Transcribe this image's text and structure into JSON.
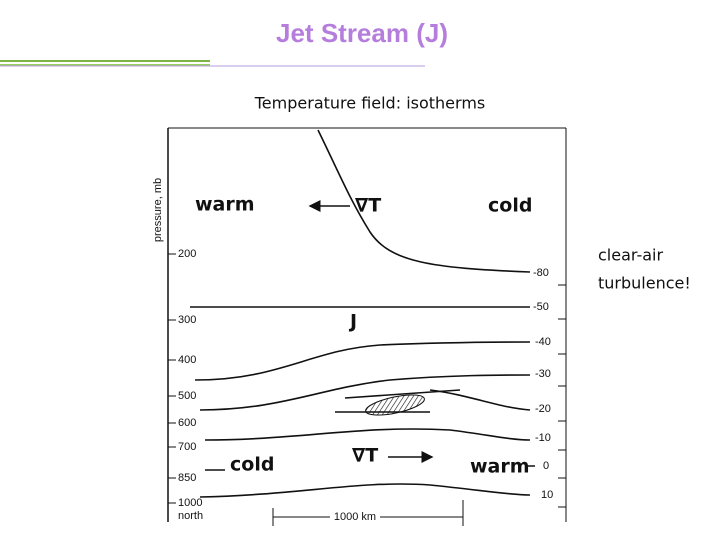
{
  "header": {
    "title": "Jet Stream (J)"
  },
  "subtitle": "Temperature field: isotherms",
  "diagram": {
    "y_axis_label": "pressure, mb",
    "pressure_labels": [
      "200",
      "300",
      "400",
      "500",
      "600",
      "700",
      "850",
      "1000"
    ],
    "bottom_left_label": "north",
    "isotherm_labels": [
      "-80",
      "-50",
      "-40",
      "-30",
      "-20",
      "-10",
      "0",
      "10"
    ],
    "labels": {
      "warm_top": "warm",
      "cold_top": "cold",
      "gradient_top": "∇T",
      "jet": "J",
      "cold_bottom": "cold",
      "gradient_bottom": "∇T",
      "warm_bottom": "warm",
      "scale": "1000 km"
    }
  },
  "note": {
    "lines": [
      "clear-air",
      "turbulence!"
    ]
  }
}
